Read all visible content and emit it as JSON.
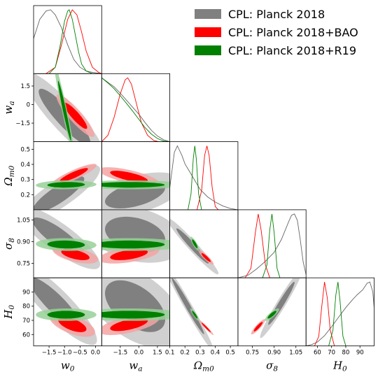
{
  "chart_data": {
    "type": "triangle-corner",
    "parameters": [
      {
        "key": "w0",
        "label_base": "w",
        "label_sub": "0",
        "range": [
          -2.0,
          0.2
        ],
        "ticks": [
          -1.5,
          -1.0,
          -0.5,
          0.0
        ],
        "tick_labels": [
          "−1.5",
          "−1.0",
          "−0.5",
          "0.0"
        ]
      },
      {
        "key": "wa",
        "label_base": "w",
        "label_sub": "a",
        "range": [
          -3.0,
          2.5
        ],
        "ticks": [
          -1.5,
          0.0,
          1.5
        ],
        "tick_labels": [
          "−1.5",
          "0",
          "1.5"
        ]
      },
      {
        "key": "Om0",
        "label_base": "Ω",
        "label_sub": "m0",
        "range": [
          0.1,
          0.55
        ],
        "ticks": [
          0.2,
          0.3,
          0.4,
          0.5
        ],
        "tick_labels": [
          "0.2",
          "0.3",
          "0.4",
          "0.5"
        ]
      },
      {
        "key": "s8",
        "label_base": "σ",
        "label_sub": "8",
        "range": [
          0.65,
          1.12
        ],
        "ticks": [
          0.75,
          0.9,
          1.05
        ],
        "tick_labels": [
          "0.75",
          "0.90",
          "1.05"
        ]
      },
      {
        "key": "H0",
        "label_base": "H",
        "label_sub": "0",
        "range": [
          52,
          100
        ],
        "ticks": [
          60,
          70,
          80,
          90
        ],
        "tick_labels": [
          "60",
          "70",
          "80",
          "90"
        ]
      }
    ],
    "xticks_override": {
      "wa": {
        "ticks": [
          -1.5,
          0.0,
          1.5
        ],
        "tick_labels": [
          "−1.5",
          "0.0",
          "1.5"
        ]
      },
      "Om0": {
        "ticks": [
          0.1,
          0.2,
          0.3,
          0.4,
          0.5
        ],
        "tick_labels": [
          "0.1",
          "0.2",
          "0.3",
          "0.4",
          "0.5"
        ]
      },
      "s8": {
        "ticks": [
          0.75,
          0.9,
          1.05
        ],
        "tick_labels": [
          "0.75",
          "0.90",
          "1.05"
        ]
      },
      "H0": {
        "ticks": [
          60,
          70,
          80,
          90
        ],
        "tick_labels": [
          "60",
          "70",
          "80",
          "90"
        ]
      }
    },
    "legend_placement": "top-right",
    "series": [
      {
        "name": "CPL: Planck 2018",
        "color": "#808080",
        "color_outer": "#c8c8c8",
        "line": "#666666",
        "marginals": {
          "w0": [
            [
              -2.0,
              0.55
            ],
            [
              -1.8,
              0.85
            ],
            [
              -1.6,
              0.98
            ],
            [
              -1.45,
              1.0
            ],
            [
              -1.3,
              0.92
            ],
            [
              -1.1,
              0.72
            ],
            [
              -0.9,
              0.45
            ],
            [
              -0.7,
              0.22
            ],
            [
              -0.5,
              0.1
            ],
            [
              -0.3,
              0.04
            ],
            [
              -0.1,
              0.02
            ],
            [
              0.2,
              0.0
            ]
          ],
          "wa": [
            [
              -3.0,
              1.0
            ],
            [
              -2.5,
              0.93
            ],
            [
              -2.0,
              0.86
            ],
            [
              -1.5,
              0.76
            ],
            [
              -1.0,
              0.65
            ],
            [
              -0.5,
              0.54
            ],
            [
              0.0,
              0.43
            ],
            [
              0.5,
              0.3
            ],
            [
              1.0,
              0.18
            ],
            [
              1.5,
              0.09
            ],
            [
              2.0,
              0.03
            ],
            [
              2.5,
              0.0
            ]
          ],
          "Om0": [
            [
              0.1,
              0.35
            ],
            [
              0.13,
              0.9
            ],
            [
              0.15,
              1.0
            ],
            [
              0.18,
              0.85
            ],
            [
              0.2,
              0.72
            ],
            [
              0.23,
              0.6
            ],
            [
              0.26,
              0.48
            ],
            [
              0.3,
              0.32
            ],
            [
              0.35,
              0.2
            ],
            [
              0.4,
              0.12
            ],
            [
              0.45,
              0.06
            ],
            [
              0.5,
              0.02
            ],
            [
              0.55,
              0.0
            ]
          ],
          "s8": [
            [
              0.65,
              0.0
            ],
            [
              0.72,
              0.04
            ],
            [
              0.78,
              0.14
            ],
            [
              0.84,
              0.26
            ],
            [
              0.9,
              0.4
            ],
            [
              0.95,
              0.6
            ],
            [
              1.0,
              0.88
            ],
            [
              1.02,
              0.98
            ],
            [
              1.04,
              1.0
            ],
            [
              1.06,
              0.9
            ],
            [
              1.08,
              0.6
            ],
            [
              1.1,
              0.25
            ],
            [
              1.12,
              0.05
            ]
          ],
          "H0": [
            [
              52,
              0.0
            ],
            [
              56,
              0.02
            ],
            [
              60,
              0.06
            ],
            [
              65,
              0.16
            ],
            [
              70,
              0.3
            ],
            [
              75,
              0.45
            ],
            [
              80,
              0.6
            ],
            [
              85,
              0.73
            ],
            [
              88,
              0.8
            ],
            [
              92,
              0.88
            ],
            [
              95,
              0.98
            ],
            [
              97,
              1.0
            ],
            [
              99,
              0.85
            ],
            [
              100,
              0.6
            ]
          ]
        },
        "pairs": {
          "w0|wa": {
            "center": [
              -1.0,
              -1.0
            ],
            "sx": 0.55,
            "sy": 1.5,
            "rho": -0.9
          },
          "w0|Om0": {
            "center": [
              -1.2,
              0.2
            ],
            "sx": 0.55,
            "sy": 0.08,
            "rho": 0.85
          },
          "w0|s8": {
            "center": [
              -1.2,
              0.93
            ],
            "sx": 0.55,
            "sy": 0.09,
            "rho": -0.85
          },
          "w0|H0": {
            "center": [
              -1.3,
              82
            ],
            "sx": 0.55,
            "sy": 12,
            "rho": -0.88
          },
          "wa|Om0": {
            "center": [
              -0.3,
              0.2
            ],
            "sx": 1.6,
            "sy": 0.06,
            "rho": 0.5
          },
          "wa|s8": {
            "center": [
              -0.3,
              0.95
            ],
            "sx": 1.6,
            "sy": 0.08,
            "rho": -0.3
          },
          "wa|H0": {
            "center": [
              -0.3,
              80
            ],
            "sx": 1.6,
            "sy": 12,
            "rho": -0.5
          },
          "Om0|s8": {
            "center": [
              0.25,
              0.87
            ],
            "sx": 0.07,
            "sy": 0.08,
            "rho": -0.97
          },
          "Om0|H0": {
            "center": [
              0.22,
              80
            ],
            "sx": 0.07,
            "sy": 13,
            "rho": -0.985
          },
          "s8|H0": {
            "center": [
              0.95,
              82
            ],
            "sx": 0.06,
            "sy": 10,
            "rho": 0.97
          }
        }
      },
      {
        "name": "CPL: Planck 2018+BAO",
        "color": "#ff0000",
        "color_outer": "#f5a3a3",
        "line": "#ff0000",
        "marginals": {
          "w0": [
            [
              -1.6,
              0.0
            ],
            [
              -1.3,
              0.1
            ],
            [
              -1.1,
              0.45
            ],
            [
              -0.9,
              0.85
            ],
            [
              -0.75,
              1.0
            ],
            [
              -0.6,
              0.92
            ],
            [
              -0.45,
              0.65
            ],
            [
              -0.3,
              0.35
            ],
            [
              -0.1,
              0.1
            ],
            [
              0.1,
              0.02
            ],
            [
              0.2,
              0.0
            ]
          ],
          "wa": [
            [
              -3.0,
              0.0
            ],
            [
              -2.5,
              0.1
            ],
            [
              -2.0,
              0.38
            ],
            [
              -1.5,
              0.75
            ],
            [
              -1.1,
              0.97
            ],
            [
              -0.9,
              1.0
            ],
            [
              -0.6,
              0.9
            ],
            [
              -0.2,
              0.6
            ],
            [
              0.2,
              0.3
            ],
            [
              0.7,
              0.1
            ],
            [
              1.2,
              0.02
            ],
            [
              1.6,
              0.0
            ]
          ],
          "Om0": [
            [
              0.28,
              0.0
            ],
            [
              0.31,
              0.3
            ],
            [
              0.33,
              0.85
            ],
            [
              0.345,
              1.0
            ],
            [
              0.36,
              0.85
            ],
            [
              0.38,
              0.35
            ],
            [
              0.4,
              0.05
            ],
            [
              0.42,
              0.0
            ]
          ],
          "s8": [
            [
              0.7,
              0.0
            ],
            [
              0.74,
              0.15
            ],
            [
              0.77,
              0.7
            ],
            [
              0.79,
              1.0
            ],
            [
              0.81,
              0.75
            ],
            [
              0.84,
              0.2
            ],
            [
              0.87,
              0.0
            ]
          ],
          "H0": [
            [
              58,
              0.0
            ],
            [
              61,
              0.15
            ],
            [
              63,
              0.6
            ],
            [
              65,
              1.0
            ],
            [
              67,
              0.75
            ],
            [
              69,
              0.25
            ],
            [
              72,
              0.0
            ]
          ]
        },
        "pairs": {
          "w0|wa": {
            "center": [
              -0.65,
              -0.9
            ],
            "sx": 0.25,
            "sy": 0.7,
            "rho": -0.9
          },
          "w0|Om0": {
            "center": [
              -0.7,
              0.33
            ],
            "sx": 0.3,
            "sy": 0.03,
            "rho": 0.88
          },
          "w0|s8": {
            "center": [
              -0.65,
              0.81
            ],
            "sx": 0.3,
            "sy": 0.025,
            "rho": -0.55
          },
          "w0|H0": {
            "center": [
              -0.75,
              67
            ],
            "sx": 0.3,
            "sy": 3.5,
            "rho": -0.6
          },
          "wa|Om0": {
            "center": [
              -0.8,
              0.32
            ],
            "sx": 1.0,
            "sy": 0.025,
            "rho": -0.7
          },
          "wa|s8": {
            "center": [
              -0.8,
              0.81
            ],
            "sx": 1.0,
            "sy": 0.025,
            "rho": 0.5
          },
          "wa|H0": {
            "center": [
              -0.8,
              67
            ],
            "sx": 1.0,
            "sy": 3.0,
            "rho": 0.6
          },
          "Om0|s8": {
            "center": [
              0.34,
              0.79
            ],
            "sx": 0.02,
            "sy": 0.02,
            "rho": -0.9
          },
          "Om0|H0": {
            "center": [
              0.34,
              65
            ],
            "sx": 0.02,
            "sy": 2.2,
            "rho": -0.97
          },
          "s8|H0": {
            "center": [
              0.79,
              65.5
            ],
            "sx": 0.02,
            "sy": 2.2,
            "rho": 0.9
          }
        }
      },
      {
        "name": "CPL: Planck 2018+R19",
        "color": "#008000",
        "color_outer": "#98d098",
        "line": "#008000",
        "marginals": {
          "w0": [
            [
              -1.5,
              0.0
            ],
            [
              -1.3,
              0.1
            ],
            [
              -1.15,
              0.42
            ],
            [
              -1.0,
              0.82
            ],
            [
              -0.9,
              0.98
            ],
            [
              -0.85,
              1.0
            ],
            [
              -0.75,
              0.85
            ],
            [
              -0.65,
              0.6
            ],
            [
              -0.55,
              0.35
            ],
            [
              -0.45,
              0.15
            ],
            [
              -0.3,
              0.04
            ],
            [
              -0.1,
              0.0
            ]
          ],
          "wa": [
            [
              -3.0,
              1.0
            ],
            [
              -2.5,
              0.92
            ],
            [
              -2.0,
              0.83
            ],
            [
              -1.5,
              0.72
            ],
            [
              -1.0,
              0.6
            ],
            [
              -0.5,
              0.48
            ],
            [
              0.0,
              0.35
            ],
            [
              0.5,
              0.22
            ],
            [
              1.0,
              0.12
            ],
            [
              1.5,
              0.05
            ],
            [
              2.0,
              0.01
            ],
            [
              2.5,
              0.0
            ]
          ],
          "Om0": [
            [
              0.22,
              0.0
            ],
            [
              0.24,
              0.25
            ],
            [
              0.255,
              0.8
            ],
            [
              0.265,
              1.0
            ],
            [
              0.275,
              0.8
            ],
            [
              0.29,
              0.25
            ],
            [
              0.31,
              0.0
            ]
          ],
          "s8": [
            [
              0.82,
              0.0
            ],
            [
              0.85,
              0.2
            ],
            [
              0.87,
              0.75
            ],
            [
              0.885,
              1.0
            ],
            [
              0.9,
              0.7
            ],
            [
              0.92,
              0.15
            ],
            [
              0.94,
              0.0
            ]
          ],
          "H0": [
            [
              68,
              0.0
            ],
            [
              71,
              0.25
            ],
            [
              73,
              0.8
            ],
            [
              74.5,
              1.0
            ],
            [
              76,
              0.7
            ],
            [
              78,
              0.15
            ],
            [
              80,
              0.0
            ]
          ]
        },
        "pairs": {
          "w0|wa": {
            "center": [
              -1.0,
              -0.5
            ],
            "sx": 0.14,
            "sy": 1.6,
            "rho": -0.97
          },
          "w0|Om0": {
            "center": [
              -0.95,
              0.265
            ],
            "sx": 0.4,
            "sy": 0.012,
            "rho": 0.1
          },
          "w0|s8": {
            "center": [
              -0.95,
              0.88
            ],
            "sx": 0.4,
            "sy": 0.018,
            "rho": -0.1
          },
          "w0|H0": {
            "center": [
              -0.95,
              74
            ],
            "sx": 0.4,
            "sy": 1.8,
            "rho": 0.0
          },
          "wa|Om0": {
            "center": [
              -0.8,
              0.265
            ],
            "sx": 1.9,
            "sy": 0.012,
            "rho": 0.0
          },
          "wa|s8": {
            "center": [
              -0.8,
              0.88
            ],
            "sx": 1.9,
            "sy": 0.018,
            "rho": 0.0
          },
          "wa|H0": {
            "center": [
              -0.8,
              74
            ],
            "sx": 1.9,
            "sy": 1.8,
            "rho": 0.0
          },
          "Om0|s8": {
            "center": [
              0.265,
              0.885
            ],
            "sx": 0.012,
            "sy": 0.02,
            "rho": -0.85
          },
          "Om0|H0": {
            "center": [
              0.265,
              74
            ],
            "sx": 0.012,
            "sy": 1.8,
            "rho": -0.9
          },
          "s8|H0": {
            "center": [
              0.885,
              74
            ],
            "sx": 0.02,
            "sy": 1.8,
            "rho": 0.85
          }
        }
      }
    ]
  }
}
